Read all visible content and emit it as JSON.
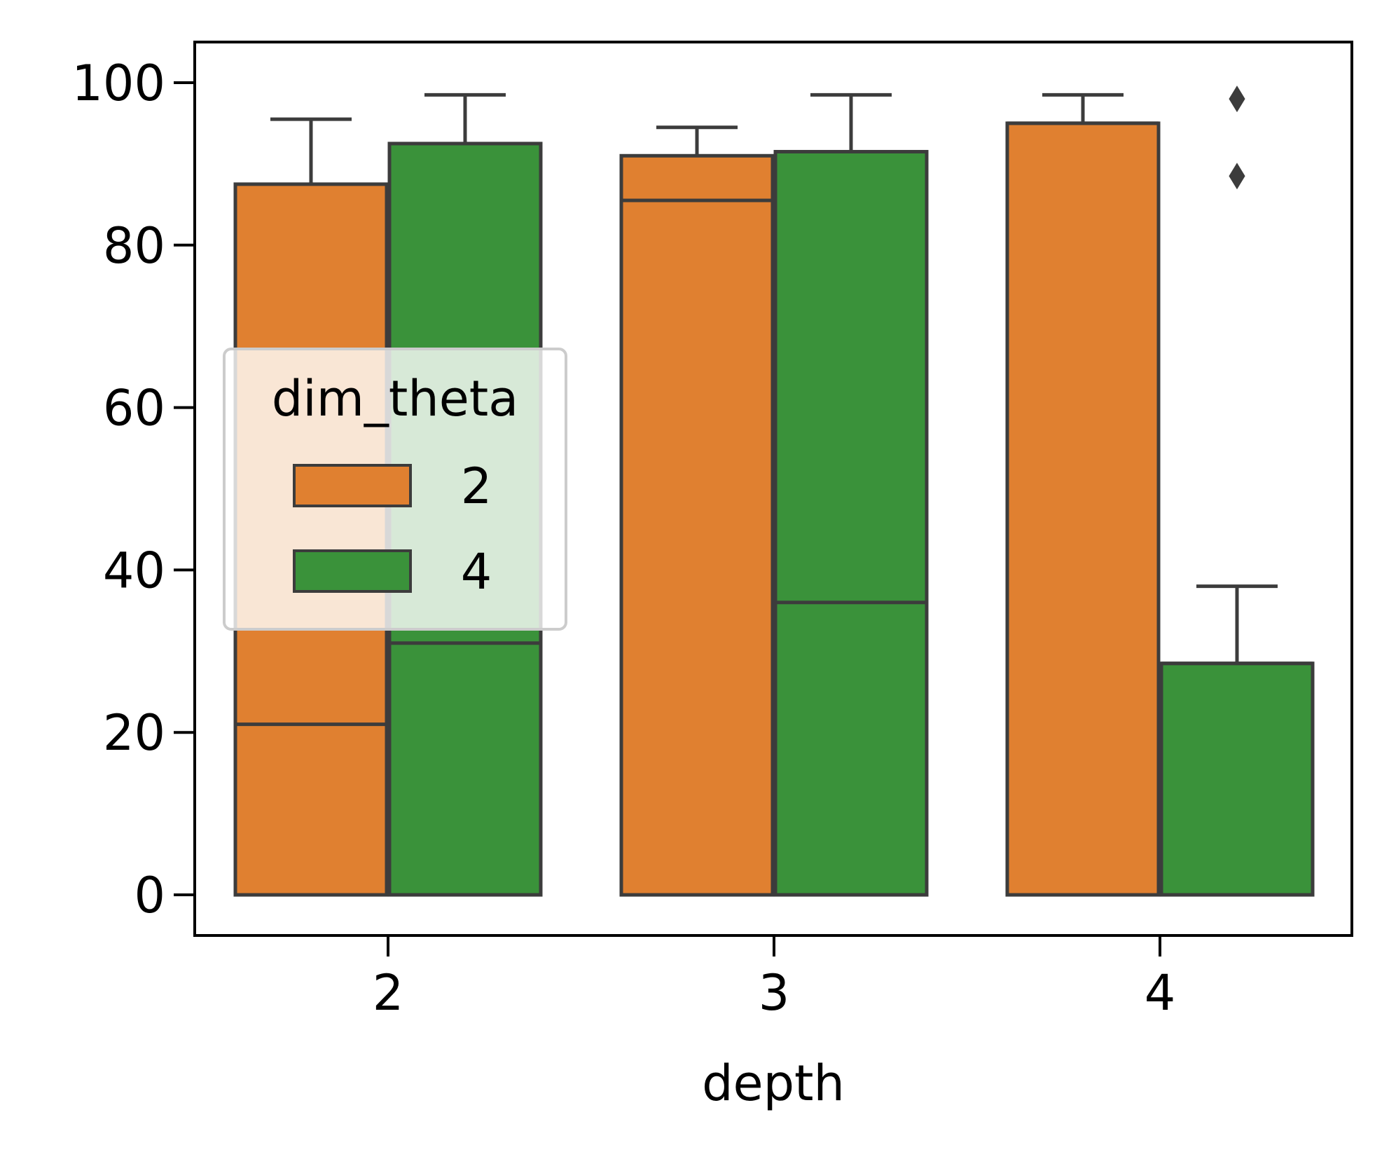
{
  "chart_data": {
    "type": "boxplot",
    "xlabel": "depth",
    "ylabel": "",
    "categories": [
      "2",
      "3",
      "4"
    ],
    "ylim": [
      -5,
      105
    ],
    "yticks": [
      0,
      20,
      40,
      60,
      80,
      100
    ],
    "legend": {
      "title": "dim_theta",
      "placement": "center-left",
      "entries": [
        "2",
        "4"
      ]
    },
    "series": [
      {
        "name": "2",
        "color": "#e08030",
        "boxes": [
          {
            "category": "2",
            "whisker_low": 0,
            "q1": 0,
            "median": 21,
            "q3": 87.5,
            "whisker_high": 95.5,
            "outliers": []
          },
          {
            "category": "3",
            "whisker_low": 0,
            "q1": 0,
            "median": 85.5,
            "q3": 91,
            "whisker_high": 94.5,
            "outliers": []
          },
          {
            "category": "4",
            "whisker_low": 0,
            "q1": 0,
            "median": 95,
            "q3": 95,
            "whisker_high": 98.5,
            "outliers": []
          }
        ]
      },
      {
        "name": "4",
        "color": "#3a923a",
        "boxes": [
          {
            "category": "2",
            "whisker_low": 0,
            "q1": 0,
            "median": 31,
            "q3": 92.5,
            "whisker_high": 98.5,
            "outliers": []
          },
          {
            "category": "3",
            "whisker_low": 0,
            "q1": 0,
            "median": 36,
            "q3": 91.5,
            "whisker_high": 98.5,
            "outliers": []
          },
          {
            "category": "4",
            "whisker_low": 0,
            "q1": 0,
            "median": 28.5,
            "q3": 28.5,
            "whisker_high": 38,
            "outliers": [
              98,
              88.5
            ]
          }
        ]
      }
    ]
  }
}
